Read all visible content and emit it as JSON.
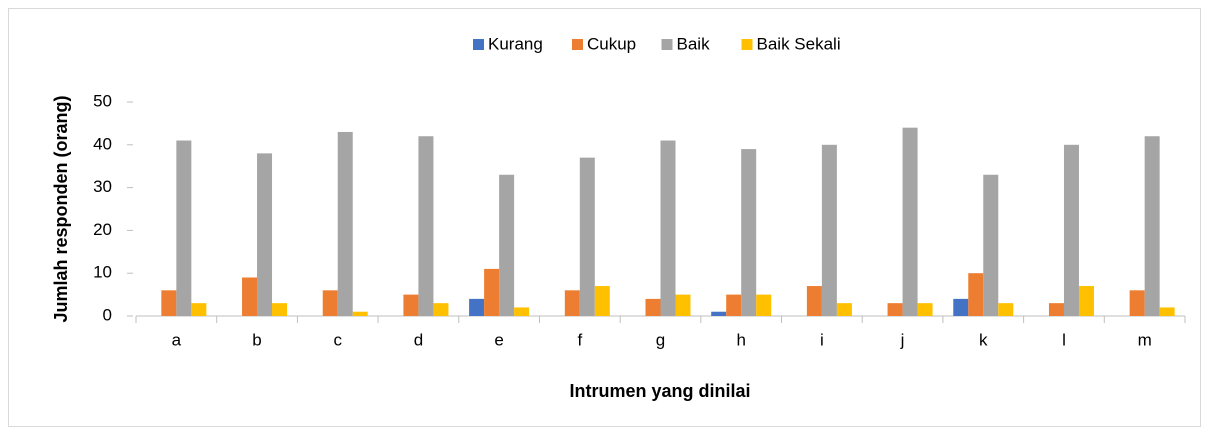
{
  "chart_data": {
    "type": "bar",
    "x_label": "Intrumen yang dinilai",
    "y_label": "Jumlah responden (orang)",
    "categories": [
      "a",
      "b",
      "c",
      "d",
      "e",
      "f",
      "g",
      "h",
      "i",
      "j",
      "k",
      "l",
      "m"
    ],
    "series": [
      {
        "name": "Kurang",
        "color": "#4472c4",
        "values": [
          0,
          0,
          0,
          0,
          4,
          0,
          0,
          1,
          0,
          0,
          4,
          0,
          0
        ]
      },
      {
        "name": "Cukup",
        "color": "#ed7d31",
        "values": [
          6,
          9,
          6,
          5,
          11,
          6,
          4,
          5,
          7,
          3,
          10,
          3,
          6
        ]
      },
      {
        "name": "Baik",
        "color": "#a5a5a5",
        "values": [
          41,
          38,
          43,
          42,
          33,
          37,
          41,
          39,
          40,
          44,
          33,
          40,
          42
        ]
      },
      {
        "name": "Baik Sekali",
        "color": "#ffc000",
        "values": [
          3,
          3,
          1,
          3,
          2,
          7,
          5,
          5,
          3,
          3,
          3,
          7,
          2
        ]
      }
    ],
    "ylim": [
      0,
      50
    ],
    "yticks": [
      0,
      10,
      20,
      30,
      40,
      50
    ],
    "grid": false,
    "legend": "top"
  }
}
